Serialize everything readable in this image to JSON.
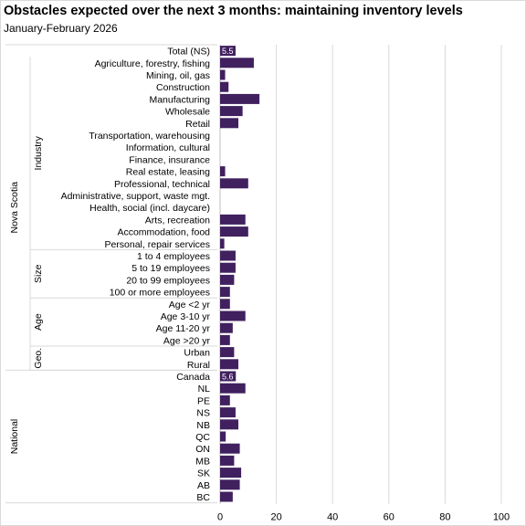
{
  "chart_data": {
    "type": "bar",
    "orientation": "horizontal",
    "title": "Obstacles expected over the next 3 months:  maintaining inventory levels",
    "subtitle": "January-February  2026",
    "xlim": [
      0,
      100
    ],
    "xticks": [
      "0",
      "20",
      "40",
      "60",
      "80",
      "100"
    ],
    "grid": true,
    "bar_color": "#40205e",
    "outer_groups": [
      {
        "label": "Nova Scotia",
        "start": 0,
        "end": 26
      },
      {
        "label": "National",
        "start": 27,
        "end": 37
      }
    ],
    "inner_groups": [
      {
        "label": "Industry",
        "start": 1,
        "end": 16
      },
      {
        "label": "Size",
        "start": 17,
        "end": 20
      },
      {
        "label": "Age",
        "start": 21,
        "end": 24
      },
      {
        "label": "Geo.",
        "start": 25,
        "end": 26
      }
    ],
    "categories": [
      "Total (NS)",
      "Agriculture, forestry, fishing",
      "Mining, oil, gas",
      "Construction",
      "Manufacturing",
      "Wholesale",
      "Retail",
      "Transportation, warehousing",
      "Information, cultural",
      "Finance, insurance",
      "Real estate, leasing",
      "Professional, technical",
      "Administrative, support, waste mgt.",
      "Health, social (incl. daycare)",
      "Arts, recreation",
      "Accommodation, food",
      "Personal, repair services",
      "1 to 4 employees",
      "5 to 19 employees",
      "20 to 99 employees",
      "100 or more employees",
      "Age <2 yr",
      "Age 3-10 yr",
      "Age 11-20 yr",
      "Age >20 yr",
      "Urban",
      "Rural",
      "Canada",
      "NL",
      "PE",
      "NS",
      "NB",
      "QC",
      "ON",
      "MB",
      "SK",
      "AB",
      "BC"
    ],
    "values": [
      5.5,
      12,
      1.8,
      3,
      14,
      8,
      6.5,
      0,
      0,
      0,
      1.8,
      10,
      0,
      0,
      9,
      10,
      1.5,
      5.5,
      5.5,
      5,
      3.5,
      3.5,
      9,
      4.5,
      3.5,
      5,
      6.5,
      5.6,
      9,
      3.5,
      5.5,
      6.5,
      2,
      7,
      5,
      7.5,
      7,
      4.5
    ],
    "data_labels": {
      "0": "5.5",
      "27": "5.6"
    }
  }
}
